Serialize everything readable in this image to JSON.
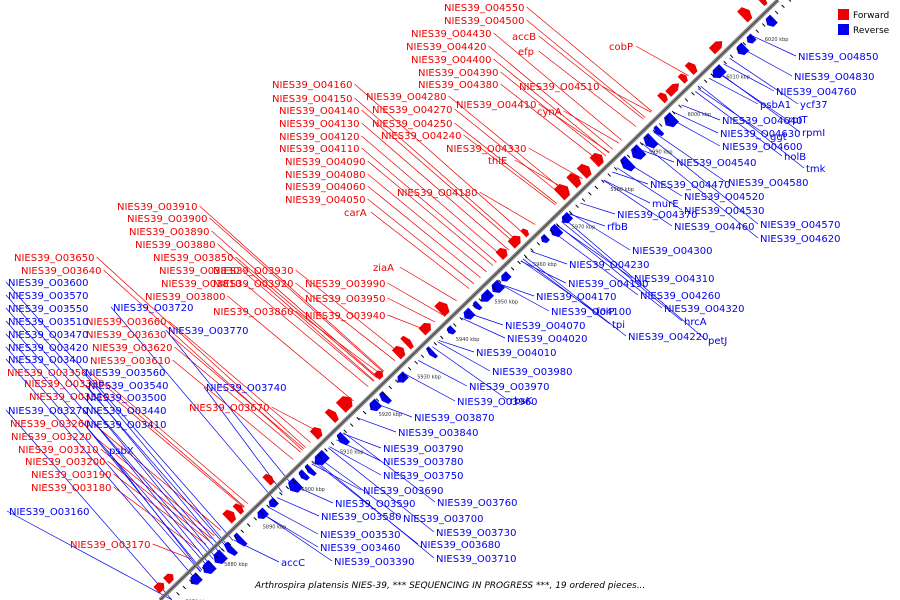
{
  "caption": "Arthrospira platensis NIES-39, *** SEQUENCING IN PROGRESS ***, 19 ordered pieces...",
  "legend": [
    {
      "label": "Forward",
      "color": "#ee0000"
    },
    {
      "label": "Reverse",
      "color": "#0000ee"
    }
  ],
  "colors": {
    "forward": "#ee0000",
    "reverse": "#0000ee",
    "backbone": "#888888",
    "line": "#000000"
  },
  "ticks": [
    "5870 kbp",
    "5880 kbp",
    "5890 kbp",
    "5900 kbp",
    "5910 kbp",
    "5920 kbp",
    "5930 kbp",
    "5940 kbp",
    "5950 kbp",
    "5960 kbp",
    "5970 kbp",
    "5980 kbp",
    "5990 kbp",
    "6000 kbp",
    "6010 kbp",
    "6020 kbp"
  ],
  "forward_labels": [
    "NIES39_O04550",
    "NIES39_O04500",
    "NIES39_O04430",
    "accB",
    "NIES39_O04420",
    "efp",
    "cobP",
    "NIES39_O04400",
    "NIES39_O04390",
    "NIES39_O04380",
    "NIES39_O04510",
    "NIES39_O04160",
    "NIES39_O04280",
    "NIES39_O04410",
    "cynA",
    "NIES39_O04150",
    "NIES39_O04270",
    "NIES39_O04140",
    "NIES39_O04250",
    "NIES39_O04130",
    "NIES39_O04240",
    "NIES39_O04120",
    "NIES39_O04330",
    "NIES39_O04110",
    "thiE",
    "NIES39_O04090",
    "NIES39_O04080",
    "NIES39_O04060",
    "NIES39_O04180",
    "NIES39_O04050",
    "carA",
    "NIES39_O03910",
    "NIES39_O03900",
    "NIES39_O03890",
    "NIES39_O03880",
    "NIES39_O03650",
    "NIES39_O03850",
    "ziaA",
    "NIES39_O03640",
    "NIES39_O03830",
    "NIES39_O03930",
    "NIES39_O03810",
    "NIES39_O03920",
    "NIES39_O03990",
    "NIES39_O03800",
    "NIES39_O03950",
    "NIES39_O03860",
    "NIES39_O03940",
    "NIES39_O03660",
    "NIES39_O03630",
    "NIES39_O03620",
    "NIES39_O03610",
    "NIES39_O03350",
    "NIES39_O03330",
    "NIES39_O03310",
    "NIES39_O03670",
    "NIES39_O03260",
    "NIES39_O03220",
    "NIES39_O03210",
    "NIES39_O03200",
    "NIES39_O03190",
    "NIES39_O03180",
    "NIES39_O03170"
  ],
  "reverse_labels": [
    "NIES39_O04850",
    "NIES39_O04830",
    "NIES39_O04760",
    "ycf37",
    "psbA1",
    "rpIT",
    "NIES39_O04640",
    "rpmI",
    "NIES39_O04630",
    "ggt",
    "NIES39_O04600",
    "holB",
    "NIES39_O04540",
    "tmk",
    "NIES39_O04580",
    "NIES39_O04470",
    "murE",
    "NIES39_O04520",
    "NIES39_O04530",
    "NIES39_O04370",
    "rfbB",
    "NIES39_O04460",
    "NIES39_O04570",
    "NIES39_O04620",
    "NIES39_O04300",
    "NIES39_O04230",
    "NIES39_O04310",
    "NIES39_O04190",
    "NIES39_O04170",
    "NIES39_O04260",
    "NIES39_O04100",
    "folP",
    "NIES39_O04320",
    "NIES39_O04070",
    "tpi",
    "hrcA",
    "NIES39_O04220",
    "petJ",
    "NIES39_O04020",
    "NIES39_O04010",
    "NIES39_O03980",
    "NIES39_O03970",
    "NIES39_O03960",
    "rbsK",
    "NIES39_O03870",
    "NIES39_O03840",
    "NIES39_O03790",
    "NIES39_O03780",
    "NIES39_O03750",
    "NIES39_O03690",
    "NIES39_O03760",
    "NIES39_O03590",
    "NIES39_O03580",
    "NIES39_O03700",
    "NIES39_O03530",
    "NIES39_O03730",
    "NIES39_O03460",
    "NIES39_O03680",
    "NIES39_O03390",
    "NIES39_O03710",
    "accC",
    "NIES39_O03570",
    "NIES39_O03550",
    "NIES39_O03510",
    "NIES39_O03470",
    "NIES39_O03420",
    "NIES39_O03400",
    "NIES39_O03560",
    "NIES39_O03540",
    "NIES39_O03500",
    "NIES39_O03440",
    "NIES39_O03410",
    "psbX",
    "NIES39_O03270",
    "NIES39_O03600",
    "NIES39_O03720",
    "NIES39_O03770",
    "NIES39_O03740",
    "NIES39_O03160"
  ]
}
